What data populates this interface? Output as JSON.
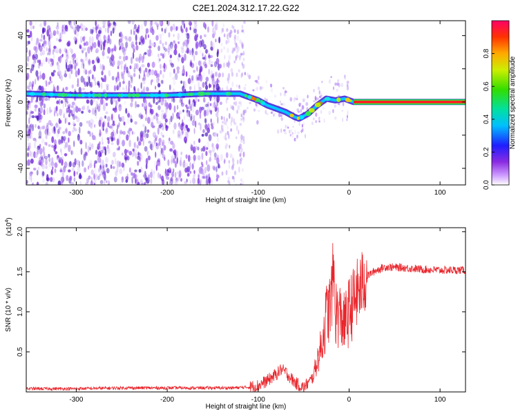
{
  "figure_title": "C2E1.2024.312.17.22.G22",
  "colors": {
    "snr_line": "#e8262c",
    "spectral_ridge": "#00c8ff",
    "scatter": "#7b2fe0",
    "axis": "#000000"
  },
  "chart_data": [
    {
      "type": "heatmap",
      "title": "C2E1.2024.312.17.22.G22",
      "xlabel": "Height of straight line (km)",
      "ylabel": "Frequency (Hz)",
      "xlim": [
        -355,
        128
      ],
      "ylim": [
        -50,
        49
      ],
      "x_ticks": [
        -300,
        -200,
        -100,
        0,
        100
      ],
      "x_tick_labels": [
        "-300",
        "-200",
        "-100",
        "0",
        "100"
      ],
      "y_ticks": [
        40,
        20,
        0,
        -20,
        -40
      ],
      "y_tick_labels": [
        "40",
        "20",
        "0",
        "-20",
        "-40"
      ],
      "ridge": [
        {
          "x": -355,
          "y": 5
        },
        {
          "x": -300,
          "y": 4
        },
        {
          "x": -250,
          "y": 4
        },
        {
          "x": -200,
          "y": 4
        },
        {
          "x": -160,
          "y": 5
        },
        {
          "x": -130,
          "y": 5
        },
        {
          "x": -120,
          "y": 5
        },
        {
          "x": -110,
          "y": 3
        },
        {
          "x": -100,
          "y": 1
        },
        {
          "x": -90,
          "y": -2
        },
        {
          "x": -80,
          "y": -4
        },
        {
          "x": -70,
          "y": -6
        },
        {
          "x": -60,
          "y": -9
        },
        {
          "x": -55,
          "y": -10
        },
        {
          "x": -45,
          "y": -7
        },
        {
          "x": -35,
          "y": -2
        },
        {
          "x": -25,
          "y": 2
        },
        {
          "x": -15,
          "y": 1
        },
        {
          "x": -5,
          "y": 2
        },
        {
          "x": 5,
          "y": 0
        },
        {
          "x": 128,
          "y": 0
        }
      ],
      "colorbar": {
        "label": "Normalized spectral amplitude",
        "range": [
          0,
          1
        ],
        "ticks": [
          0.0,
          0.2,
          0.4,
          0.6,
          0.8
        ],
        "tick_labels": [
          "0.0",
          "0.2",
          "0.4",
          "0.6",
          "0.8"
        ],
        "colormap": "rainbow"
      }
    },
    {
      "type": "line",
      "xlabel": "Height of straight line (km)",
      "ylabel": "SNR (10 * v/v)",
      "exponent_label": "(x10",
      "exponent_power": "4",
      "exponent_close": ")",
      "xlim": [
        -355,
        128
      ],
      "ylim": [
        0,
        2.05
      ],
      "x_ticks": [
        -300,
        -200,
        -100,
        0,
        100
      ],
      "x_tick_labels": [
        "-300",
        "-200",
        "-100",
        "0",
        "100"
      ],
      "y_ticks": [
        2.0,
        1.5,
        1.0,
        0.5
      ],
      "y_tick_labels": [
        "2.0",
        "1.5",
        "1.0",
        "0.5"
      ],
      "series": [
        {
          "name": "SNR",
          "x": [
            -355,
            -300,
            -250,
            -200,
            -150,
            -130,
            -110,
            -100,
            -90,
            -80,
            -75,
            -70,
            -60,
            -50,
            -40,
            -30,
            -25,
            -20,
            -17,
            -15,
            -10,
            -5,
            0,
            10,
            20,
            30,
            40,
            60,
            80,
            100,
            128
          ],
          "y": [
            0.04,
            0.04,
            0.05,
            0.05,
            0.05,
            0.05,
            0.06,
            0.08,
            0.14,
            0.22,
            0.28,
            0.25,
            0.12,
            0.05,
            0.18,
            0.6,
            0.95,
            1.1,
            1.55,
            1.0,
            0.95,
            0.85,
            1.0,
            1.25,
            1.45,
            1.52,
            1.56,
            1.55,
            1.53,
            1.52,
            1.52
          ]
        }
      ]
    }
  ]
}
